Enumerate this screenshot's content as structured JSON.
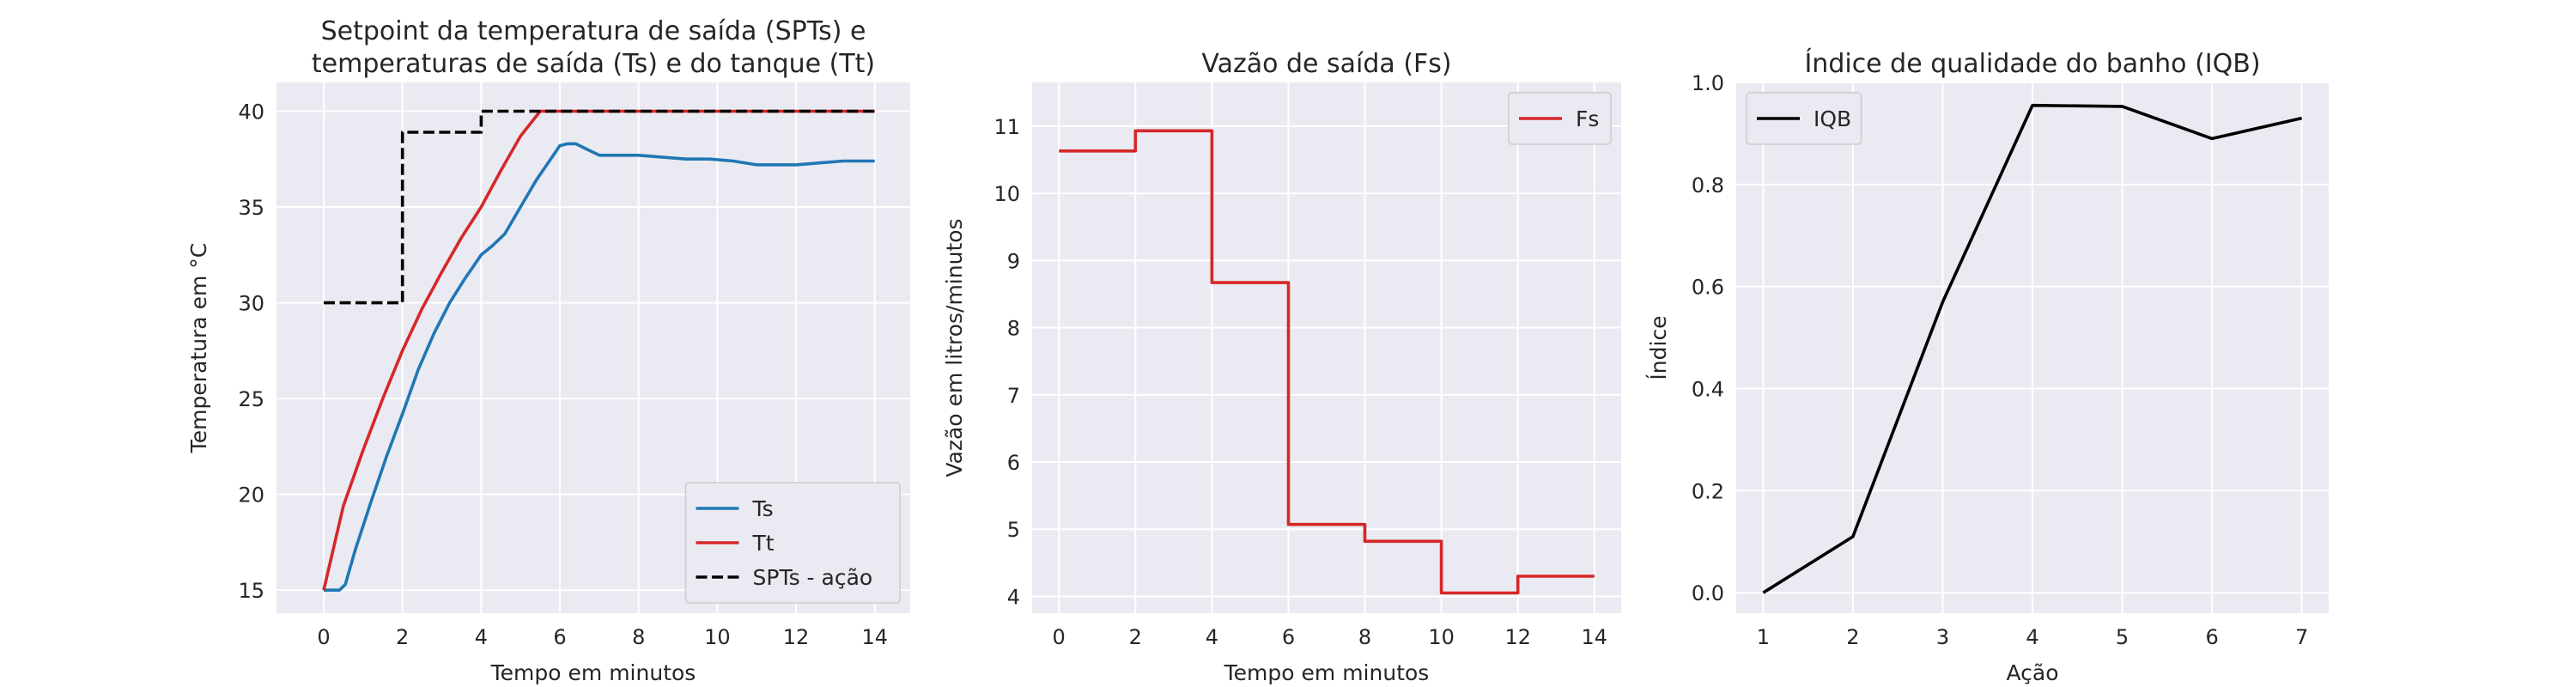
{
  "chart_data": [
    {
      "type": "line",
      "title": "Setpoint da temperatura de saída (SPTs) e\ntemperaturas de saída (Ts) e do tanque (Tt)",
      "xlabel": "Tempo em minutos",
      "ylabel": "Temperatura em °C",
      "xlim": [
        -1.2,
        14.9
      ],
      "ylim": [
        13.8,
        41.5
      ],
      "xticks": [
        0,
        2,
        4,
        6,
        8,
        10,
        12,
        14
      ],
      "yticks": [
        15,
        20,
        25,
        30,
        35,
        40
      ],
      "grid": true,
      "legend_position": "lower-right",
      "series": [
        {
          "name": "Ts",
          "color": "#1f77b4",
          "style": "solid",
          "x": [
            0,
            0.4,
            0.55,
            0.8,
            1.2,
            1.6,
            2.0,
            2.4,
            2.8,
            3.2,
            3.6,
            4.0,
            4.3,
            4.6,
            5.0,
            5.4,
            5.8,
            6.0,
            6.2,
            6.4,
            6.6,
            7.0,
            7.4,
            8.0,
            8.6,
            9.2,
            9.8,
            10.4,
            11.0,
            11.4,
            12.0,
            12.6,
            13.2,
            14.0
          ],
          "y": [
            15,
            15,
            15.3,
            17.1,
            19.6,
            22.0,
            24.2,
            26.5,
            28.4,
            30.0,
            31.3,
            32.5,
            33.0,
            33.6,
            35.0,
            36.4,
            37.6,
            38.2,
            38.3,
            38.3,
            38.1,
            37.7,
            37.7,
            37.7,
            37.6,
            37.5,
            37.5,
            37.4,
            37.2,
            37.2,
            37.2,
            37.3,
            37.4,
            37.4
          ]
        },
        {
          "name": "Tt",
          "color": "#d62728",
          "style": "solid",
          "x": [
            0,
            0.5,
            1.0,
            1.5,
            2.0,
            2.5,
            3.0,
            3.5,
            4.0,
            4.5,
            5.0,
            5.5,
            5.8,
            6.0,
            7.0,
            8.0,
            9.0,
            10.0,
            11.0,
            12.0,
            13.0,
            14.0
          ],
          "y": [
            15,
            19.4,
            22.3,
            25.0,
            27.5,
            29.7,
            31.6,
            33.4,
            35.0,
            36.9,
            38.7,
            40.0,
            40.0,
            40.0,
            40.0,
            40.0,
            40.0,
            40.0,
            40.0,
            40.0,
            40.0,
            40.0
          ]
        },
        {
          "name": "SPTs - ação",
          "color": "#000000",
          "style": "dashed",
          "x": [
            0,
            2,
            2,
            4,
            4,
            14
          ],
          "y": [
            30,
            30,
            38.9,
            38.9,
            40,
            40
          ]
        }
      ]
    },
    {
      "type": "line",
      "title": "Vazão de saída (Fs)",
      "xlabel": "Tempo em minutos",
      "ylabel": "Vazão em litros/minutos",
      "xlim": [
        -0.7,
        14.7
      ],
      "ylim": [
        3.75,
        11.65
      ],
      "xticks": [
        0,
        2,
        4,
        6,
        8,
        10,
        12,
        14
      ],
      "yticks": [
        4,
        5,
        6,
        7,
        8,
        9,
        10,
        11
      ],
      "grid": true,
      "legend_position": "top-right",
      "series": [
        {
          "name": "Fs",
          "color": "#d62728",
          "style": "solid",
          "x": [
            0,
            2,
            2,
            4,
            4,
            6,
            6,
            8,
            8,
            10,
            10,
            12,
            12,
            14
          ],
          "y": [
            10.63,
            10.63,
            10.93,
            10.93,
            8.67,
            8.67,
            5.07,
            5.07,
            4.82,
            4.82,
            4.05,
            4.05,
            4.3,
            4.3
          ]
        }
      ]
    },
    {
      "type": "line",
      "title": "Índice de qualidade do banho (IQB)",
      "xlabel": "Ação",
      "ylabel": "Índice",
      "xlim": [
        0.7,
        7.3
      ],
      "ylim": [
        -0.04,
        1.0
      ],
      "xticks": [
        1,
        2,
        3,
        4,
        5,
        6,
        7
      ],
      "yticks": [
        0.0,
        0.2,
        0.4,
        0.6,
        0.8,
        1.0
      ],
      "ytick_format": "1dp",
      "grid": true,
      "legend_position": "top-left",
      "series": [
        {
          "name": "IQB",
          "color": "#000000",
          "style": "solid",
          "x": [
            1,
            2,
            3,
            4,
            5,
            6,
            7
          ],
          "y": [
            0.0,
            0.11,
            0.57,
            0.955,
            0.953,
            0.89,
            0.93
          ]
        }
      ]
    }
  ]
}
